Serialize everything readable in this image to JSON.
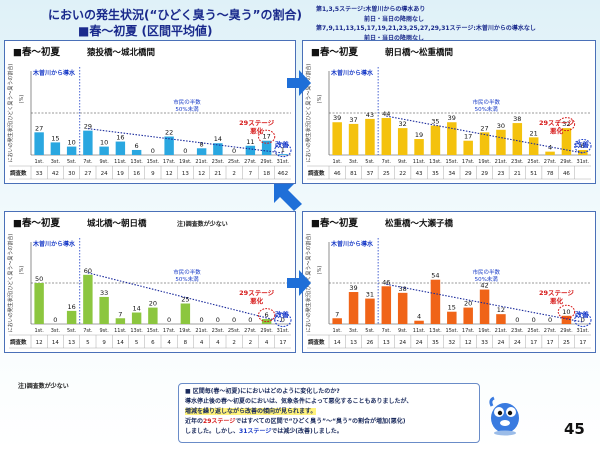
{
  "header": {
    "title_line1": "においの発生状況(“ひどく臭う～臭う”の割合)",
    "title_line2": "■春～初夏 (区間平均値)",
    "notes": [
      "第1,3,5ステージ:木曽川からの導水あり",
      "前日・当日の降雨なし",
      "第7,9,11,13,15,17,19,21,23,25,27,29,31ステージ:木曽川からの導水なし",
      "前日・当日の降雨なし"
    ]
  },
  "chart_common": {
    "ylabel": "においの発生状況(ひどく臭う～臭うの割合)",
    "ylabel_unit": "(%)",
    "count_label": "調査数",
    "inflow_label": "木曽川から導水",
    "threshold_label_line1": "市民の半数",
    "threshold_label_line2": "50%未満",
    "worse_label_line1": "29ステージ",
    "worse_label_line2": "悪化",
    "improve_label": "改善",
    "stages": [
      "1st.",
      "3st.",
      "5st.",
      "7st.",
      "9st.",
      "11st.",
      "13st.",
      "15st.",
      "17st.",
      "19st.",
      "21st.",
      "23st.",
      "25st.",
      "27st.",
      "29st.",
      "31st."
    ],
    "ylim": [
      0,
      100
    ],
    "threshold": 50
  },
  "chart_data": [
    {
      "type": "bar",
      "title": "■春～初夏",
      "section": "猿投橋～城北橋間",
      "note": "",
      "color": "#2aa7e0",
      "categories": [
        "1st.",
        "3st.",
        "5st.",
        "7st.",
        "9st.",
        "11st.",
        "13st.",
        "15st.",
        "17st.",
        "19st.",
        "21st.",
        "23st.",
        "25st.",
        "27st.",
        "29st.",
        "31st."
      ],
      "values": [
        27,
        15,
        10,
        29,
        10,
        16,
        6,
        0,
        22,
        0,
        8,
        14,
        0,
        11,
        17,
        1
      ],
      "counts": [
        "33",
        "42",
        "30",
        "27",
        "24",
        "19",
        "16",
        "9",
        "12",
        "13",
        "12",
        "21",
        "2",
        "7",
        "18",
        "462"
      ],
      "circled": [
        14,
        15
      ]
    },
    {
      "type": "bar",
      "title": "■春～初夏",
      "section": "朝日橋～松重橋間",
      "note": "",
      "color": "#f4c20d",
      "categories": [
        "1st.",
        "3st.",
        "5st.",
        "7st.",
        "9st.",
        "11st.",
        "13st.",
        "15st.",
        "17st.",
        "19st.",
        "21st.",
        "23st.",
        "25st.",
        "27st.",
        "29st.",
        "31st."
      ],
      "values": [
        39,
        37,
        43,
        44,
        32,
        19,
        35,
        39,
        17,
        27,
        30,
        38,
        21,
        4,
        32,
        6
      ],
      "counts": [
        "46",
        "81",
        "37",
        "25",
        "22",
        "43",
        "35",
        "34",
        "29",
        "29",
        "23",
        "21",
        "51",
        "78",
        "46",
        ""
      ],
      "circled": [
        14,
        15
      ]
    },
    {
      "type": "bar",
      "title": "■春～初夏",
      "section": "城北橋～朝日橋",
      "note": "注)調査数が少ない",
      "color": "#8cc63f",
      "categories": [
        "1st.",
        "3st.",
        "5st.",
        "7st.",
        "9st.",
        "11st.",
        "13st.",
        "15st.",
        "17st.",
        "19st.",
        "21st.",
        "23st.",
        "25st.",
        "27st.",
        "29st.",
        "31st."
      ],
      "values": [
        50,
        0,
        16,
        60,
        33,
        7,
        14,
        20,
        0,
        25,
        0,
        0,
        0,
        0,
        6,
        0
      ],
      "counts": [
        "12",
        "14",
        "13",
        "5",
        "9",
        "14",
        "5",
        "6",
        "4",
        "8",
        "4",
        "4",
        "2",
        "2",
        "4",
        "17"
      ],
      "circled": [
        14,
        15
      ]
    },
    {
      "type": "bar",
      "title": "■春～初夏",
      "section": "松重橋～大瀬子橋",
      "note": "",
      "color": "#f06418",
      "categories": [
        "1st.",
        "3st.",
        "5st.",
        "7st.",
        "9st.",
        "11st.",
        "13st.",
        "15st.",
        "17st.",
        "19st.",
        "21st.",
        "23st.",
        "25st.",
        "27st.",
        "29st.",
        "31st."
      ],
      "values": [
        7,
        39,
        31,
        46,
        38,
        4,
        54,
        15,
        20,
        42,
        12,
        0,
        0,
        0,
        10,
        0
      ],
      "counts": [
        "14",
        "13",
        "26",
        "13",
        "24",
        "24",
        "35",
        "32",
        "12",
        "33",
        "24",
        "24",
        "17",
        "17",
        "25",
        "17"
      ],
      "circled": [
        14,
        15
      ]
    }
  ],
  "footer": {
    "note": "注)調査数が少ない",
    "summary": {
      "q": "■ 区間毎(春～初夏)ににおいはどのように変化したのか?",
      "l1": "導水停止後の春～初夏のにおいは、気象条件によって悪化することもありましたが、",
      "l2": "増減を繰り返しながら改善の傾向が見られます。",
      "l3a": "近年の",
      "l3b": "29ステージ",
      "l3c": "ではすべての区間で“ひどく臭う”～“臭う”の割合が増加(悪化)",
      "l4a": "しました。しかし、",
      "l4b": "31ステージ",
      "l4c": "では減少(改善)しました。"
    },
    "page_number": "45"
  },
  "colors": {
    "title": "#1a2a8c",
    "panel_border": "#4a70b8",
    "arrow": "#1f6fd8",
    "worse": "#d61a1a",
    "improve": "#1a3cc8",
    "threshold_text": "#1a3cc8"
  }
}
